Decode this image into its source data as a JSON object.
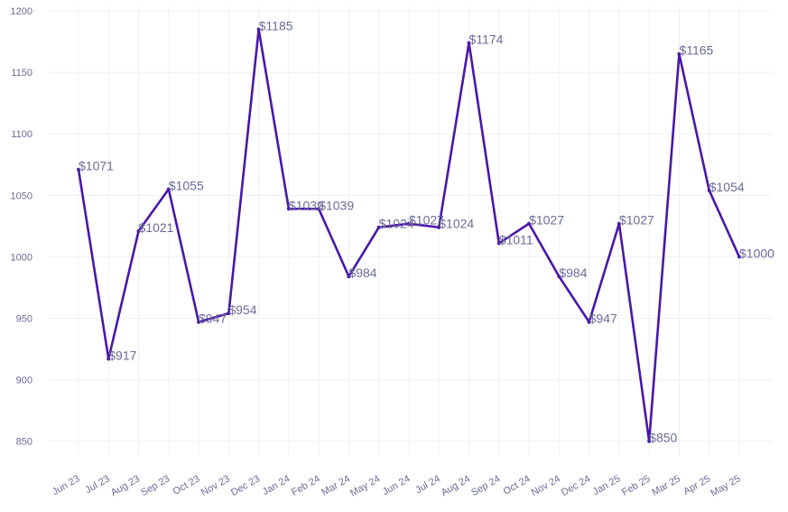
{
  "chart_data": {
    "type": "line",
    "title": "",
    "xlabel": "",
    "ylabel": "",
    "ylim": [
      838,
      1203
    ],
    "y_ticks": [
      "1200",
      "1150",
      "1100",
      "1050",
      "1000",
      "950",
      "900",
      "850"
    ],
    "grid": true,
    "legend": "none",
    "line_color": "#4a17a8",
    "label_color": "#6b6b9a",
    "categories": [
      "Jun 23",
      "Jul 23",
      "Aug 23",
      "Sep 23",
      "Oct 23",
      "Nov 23",
      "Dec 23",
      "Jan 24",
      "Feb 24",
      "Mar 24",
      "May 24",
      "Jun 24",
      "Jul 24",
      "Aug 24",
      "Sep 24",
      "Oct 24",
      "Nov 24",
      "Dec 24",
      "Jan 25",
      "Feb 25",
      "Mar 25",
      "Apr 25",
      "May 25"
    ],
    "values": [
      1071,
      917,
      1021,
      1055,
      947,
      954,
      1185,
      1039,
      1039,
      984,
      1024,
      1027,
      1024,
      1174,
      1011,
      1027,
      984,
      947,
      1027,
      850,
      1165,
      1054,
      1000
    ],
    "data_labels": [
      "$1071",
      "$917",
      "$1021",
      "$1055",
      "$947",
      "$954",
      "$1185",
      "$1039",
      "$1039",
      "$984",
      "$1024",
      "$1027",
      "$1024",
      "$1174",
      "$1011",
      "$1027",
      "$984",
      "$947",
      "$1027",
      "$850",
      "$1165",
      "$1054",
      "$1000"
    ]
  }
}
